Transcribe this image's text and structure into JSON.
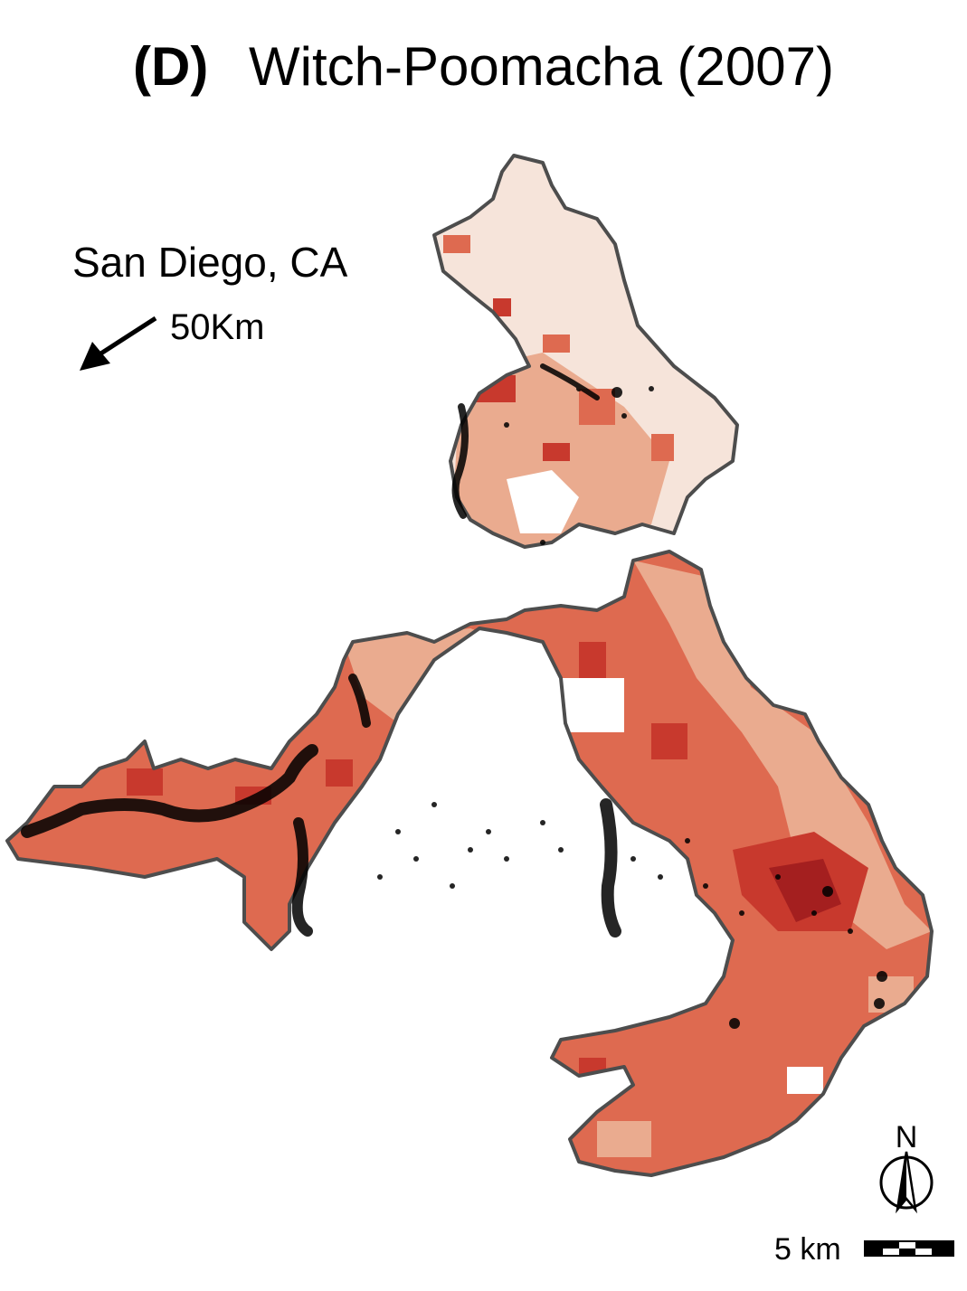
{
  "figure": {
    "panel_label": "(D)",
    "title": "Witch-Poomacha (2007)"
  },
  "annotation": {
    "location": "San Diego, CA",
    "distance": "50Km",
    "direction_icon": "arrow-southwest-icon"
  },
  "north_arrow": {
    "label": "N",
    "icon": "north-arrow-icon"
  },
  "scale_bar": {
    "label": "5 km",
    "icon": "scale-bar-icon"
  },
  "colors": {
    "burn_very_low": "#f6e4da",
    "burn_low": "#eaab8f",
    "burn_moderate": "#de6a50",
    "burn_high": "#c8392d",
    "burn_very_high": "#a41f1f",
    "perimeter": "#4d4d4d",
    "structures": "#000000"
  }
}
